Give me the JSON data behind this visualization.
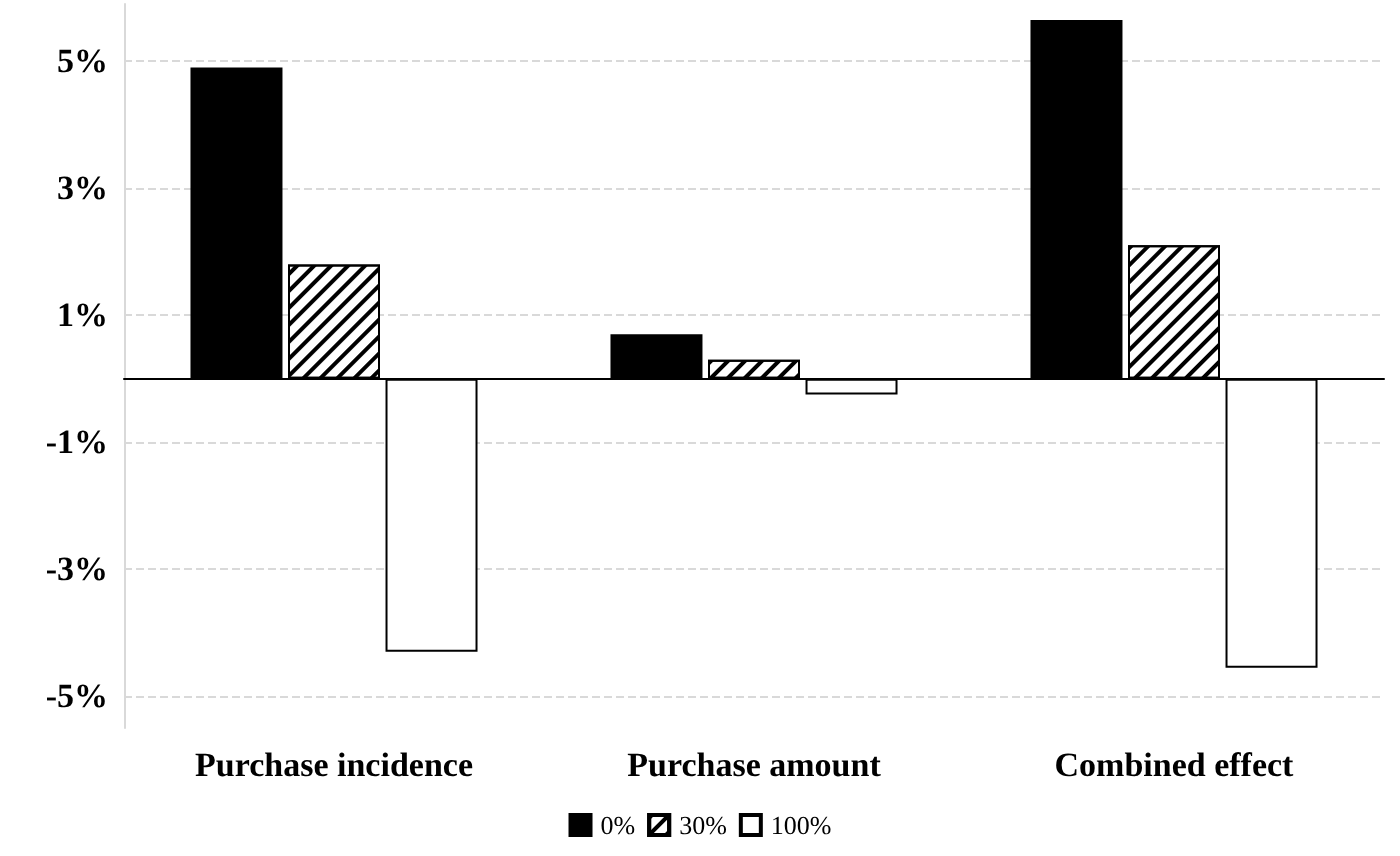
{
  "chart_data": {
    "type": "bar",
    "categories": [
      "Purchase incidence",
      "Purchase amount",
      "Combined effect"
    ],
    "series": [
      {
        "name": "0%",
        "color": "#000000",
        "values": [
          4.9,
          0.7,
          5.65
        ]
      },
      {
        "name": "30%",
        "color": "#ffffff",
        "values": [
          1.8,
          0.3,
          2.1
        ]
      },
      {
        "name": "100%",
        "color": "#ffffff",
        "values": [
          -4.3,
          -0.25,
          -4.55
        ]
      }
    ],
    "ylim": [
      -5.5,
      5.9
    ],
    "yticks": [
      {
        "value": -5,
        "label": "-5%"
      },
      {
        "value": -3,
        "label": "-3%"
      },
      {
        "value": -1,
        "label": "-1%"
      },
      {
        "value": 1,
        "label": "1%"
      },
      {
        "value": 3,
        "label": "3%"
      },
      {
        "value": 5,
        "label": "5%"
      }
    ],
    "grid": "y",
    "legend": "bottom"
  }
}
